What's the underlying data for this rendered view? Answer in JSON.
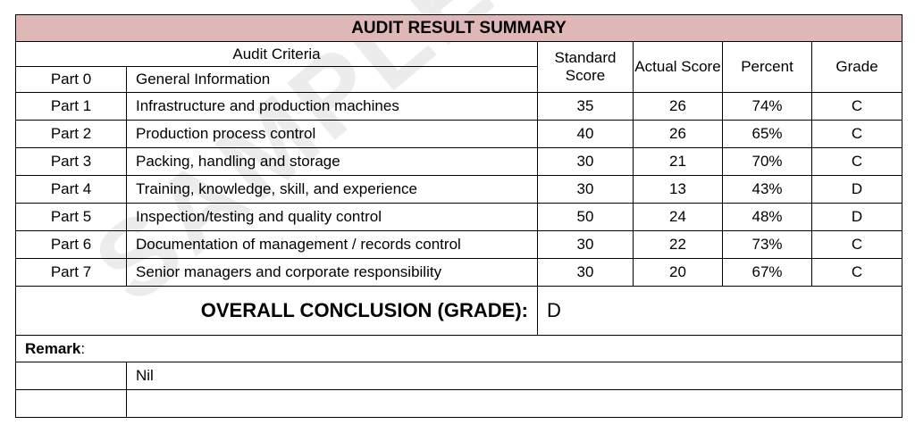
{
  "title": "AUDIT RESULT SUMMARY",
  "headers": {
    "criteria": "Audit Criteria",
    "standard": "Standard Score",
    "actual": "Actual Score",
    "percent": "Percent",
    "grade": "Grade"
  },
  "part0": {
    "part": "Part 0",
    "name": "General Information"
  },
  "rows": [
    {
      "part": "Part 1",
      "name": "Infrastructure and production machines",
      "standard": "35",
      "actual": "26",
      "percent": "74%",
      "grade": "C"
    },
    {
      "part": "Part 2",
      "name": "Production process control",
      "standard": "40",
      "actual": "26",
      "percent": "65%",
      "grade": "C"
    },
    {
      "part": "Part 3",
      "name": "Packing, handling and storage",
      "standard": "30",
      "actual": "21",
      "percent": "70%",
      "grade": "C"
    },
    {
      "part": "Part 4",
      "name": "Training, knowledge, skill, and experience",
      "standard": "30",
      "actual": "13",
      "percent": "43%",
      "grade": "D"
    },
    {
      "part": "Part 5",
      "name": "Inspection/testing and quality control",
      "standard": "50",
      "actual": "24",
      "percent": "48%",
      "grade": "D"
    },
    {
      "part": "Part 6",
      "name": "Documentation of management / records control",
      "standard": "30",
      "actual": "22",
      "percent": "73%",
      "grade": "C"
    },
    {
      "part": "Part 7",
      "name": "Senior managers and corporate responsibility",
      "standard": "30",
      "actual": "20",
      "percent": "67%",
      "grade": "C"
    }
  ],
  "conclusion": {
    "label": "OVERALL CONCLUSION (GRADE):",
    "value": "D"
  },
  "remark": {
    "label": "Remark",
    "colon": ":",
    "lines": [
      "Nil",
      ""
    ]
  },
  "watermark": "SAMPLE",
  "colors": {
    "title_bg": "#e0b7b7",
    "border": "#000000"
  }
}
